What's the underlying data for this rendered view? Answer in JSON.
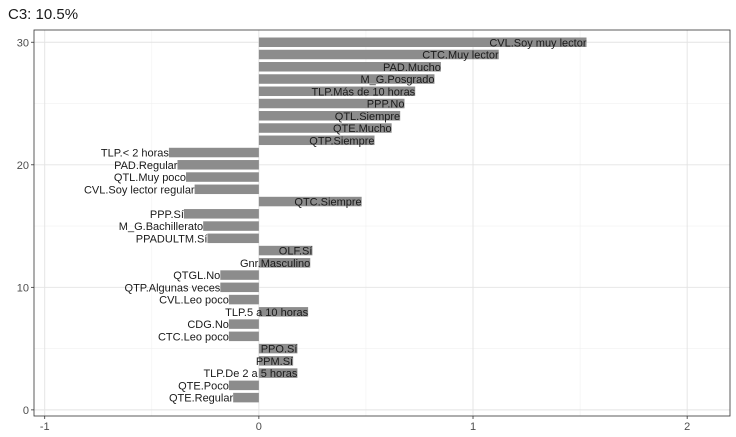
{
  "chart_data": {
    "type": "bar",
    "orientation": "horizontal",
    "title": "C3: 10.5%",
    "xlabel": "",
    "ylabel": "",
    "xlim": [
      -1.05,
      2.2
    ],
    "ylim": [
      -0.5,
      31
    ],
    "x_ticks": [
      -1,
      0,
      1,
      2
    ],
    "y_ticks": [
      0,
      10,
      20,
      30
    ],
    "grid": true,
    "bar_color": "#8c8c8c",
    "bars": [
      {
        "label": "CVL.Soy muy lector",
        "y": 30,
        "value": 1.53
      },
      {
        "label": "CTC.Muy lector",
        "y": 29,
        "value": 1.12
      },
      {
        "label": "PAD.Mucho",
        "y": 28,
        "value": 0.85
      },
      {
        "label": "M_G.Posgrado",
        "y": 27,
        "value": 0.82
      },
      {
        "label": "TLP.Más de 10 horas",
        "y": 26,
        "value": 0.73
      },
      {
        "label": "PPP.No",
        "y": 25,
        "value": 0.68
      },
      {
        "label": "QTL.Siempre",
        "y": 24,
        "value": 0.66
      },
      {
        "label": "QTE.Mucho",
        "y": 23,
        "value": 0.62
      },
      {
        "label": "QTP.Siempre",
        "y": 22,
        "value": 0.54
      },
      {
        "label": "TLP.< 2 horas",
        "y": 21,
        "value": -0.42
      },
      {
        "label": "PAD.Regular",
        "y": 20,
        "value": -0.38
      },
      {
        "label": "QTL.Muy poco",
        "y": 19,
        "value": -0.34
      },
      {
        "label": "CVL.Soy lector regular",
        "y": 18,
        "value": -0.3
      },
      {
        "label": "QTC.Siempre",
        "y": 17,
        "value": 0.48
      },
      {
        "label": "PPP.Sí",
        "y": 16,
        "value": -0.35
      },
      {
        "label": "M_G.Bachillerato",
        "y": 15,
        "value": -0.26
      },
      {
        "label": "PPADULTM.Sí",
        "y": 14,
        "value": -0.24
      },
      {
        "label": "OLF.Sí",
        "y": 13,
        "value": 0.25
      },
      {
        "label": "Gnr.Masculino",
        "y": 12,
        "value": 0.24
      },
      {
        "label": "QTGL.No",
        "y": 11,
        "value": -0.18
      },
      {
        "label": "QTP.Algunas veces",
        "y": 10,
        "value": -0.18
      },
      {
        "label": "CVL.Leo poco",
        "y": 9,
        "value": -0.14
      },
      {
        "label": "TLP.5 a 10 horas",
        "y": 8,
        "value": 0.23
      },
      {
        "label": "CDG.No",
        "y": 7,
        "value": -0.14
      },
      {
        "label": "CTC.Leo poco",
        "y": 6,
        "value": -0.14
      },
      {
        "label": "PPO.Sí",
        "y": 5,
        "value": 0.18
      },
      {
        "label": "PPM.Sí",
        "y": 4,
        "value": 0.16
      },
      {
        "label": "TLP.De 2 a 5 horas",
        "y": 3,
        "value": 0.18
      },
      {
        "label": "QTE.Poco",
        "y": 2,
        "value": -0.14
      },
      {
        "label": "QTE.Regular",
        "y": 1,
        "value": -0.12
      }
    ]
  }
}
